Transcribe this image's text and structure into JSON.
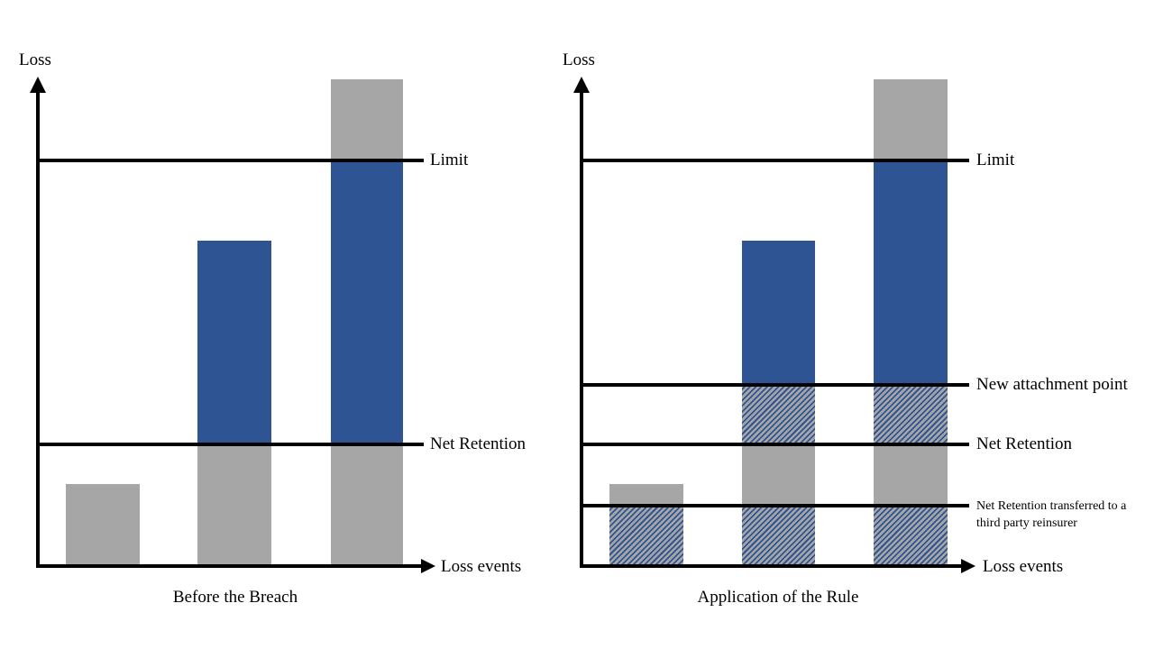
{
  "colors": {
    "bar_blue": "#2E5494",
    "bar_gray": "#A6A6A6",
    "hatch": "blue diagonal stripes over gray",
    "axis_line": "#000000",
    "background": "#FFFFFF"
  },
  "chart_data": [
    {
      "type": "bar",
      "panel_title": "Before the Breach",
      "ylabel": "Loss",
      "xlabel": "Loss events",
      "ylim": [
        0,
        100
      ],
      "value_units": "percent of plotted axis height (no numeric scale shown in figure)",
      "grid": false,
      "reference_lines": [
        {
          "id": "limit",
          "label": "Limit",
          "value": 83.3
        },
        {
          "id": "net-retention",
          "label": "Net Retention",
          "value": 25
        }
      ],
      "bars": [
        {
          "id": "loss-event-1",
          "segments": [
            {
              "style": "gray",
              "from": 0,
              "to": 16.9
            }
          ]
        },
        {
          "id": "loss-event-2",
          "segments": [
            {
              "style": "gray",
              "from": 0,
              "to": 25
            },
            {
              "style": "blue",
              "from": 25,
              "to": 66.9
            }
          ]
        },
        {
          "id": "loss-event-3",
          "segments": [
            {
              "style": "gray",
              "from": 0,
              "to": 25
            },
            {
              "style": "blue",
              "from": 25,
              "to": 83.3
            },
            {
              "style": "gray",
              "from": 83.3,
              "to": 100
            }
          ]
        }
      ]
    },
    {
      "type": "bar",
      "panel_title": "Application of the Rule",
      "ylabel": "Loss",
      "xlabel": "Loss events",
      "ylim": [
        0,
        100
      ],
      "value_units": "percent of plotted axis height (no numeric scale shown in figure)",
      "grid": false,
      "reference_lines": [
        {
          "id": "limit",
          "label": "Limit",
          "value": 83.3
        },
        {
          "id": "new-attachment-point",
          "label": "New attachment point",
          "value": 37.2
        },
        {
          "id": "net-retention",
          "label": "Net Retention",
          "value": 25
        },
        {
          "id": "net-retention-transferred",
          "label": "Net Retention transferred to a third party reinsurer",
          "label_lines": [
            "Net Retention transferred to a",
            "third party reinsurer"
          ],
          "value": 12.4,
          "small": true
        }
      ],
      "bars": [
        {
          "id": "loss-event-1",
          "segments": [
            {
              "style": "hatch",
              "from": 0,
              "to": 12.4
            },
            {
              "style": "gray",
              "from": 12.4,
              "to": 16.9
            }
          ]
        },
        {
          "id": "loss-event-2",
          "segments": [
            {
              "style": "hatch",
              "from": 0,
              "to": 12.4
            },
            {
              "style": "gray",
              "from": 12.4,
              "to": 25
            },
            {
              "style": "hatch",
              "from": 25,
              "to": 37.2
            },
            {
              "style": "blue",
              "from": 37.2,
              "to": 66.9
            }
          ]
        },
        {
          "id": "loss-event-3",
          "segments": [
            {
              "style": "hatch",
              "from": 0,
              "to": 12.4
            },
            {
              "style": "gray",
              "from": 12.4,
              "to": 25
            },
            {
              "style": "hatch",
              "from": 25,
              "to": 37.2
            },
            {
              "style": "blue",
              "from": 37.2,
              "to": 83.3
            },
            {
              "style": "gray",
              "from": 83.3,
              "to": 100
            }
          ]
        }
      ]
    }
  ]
}
